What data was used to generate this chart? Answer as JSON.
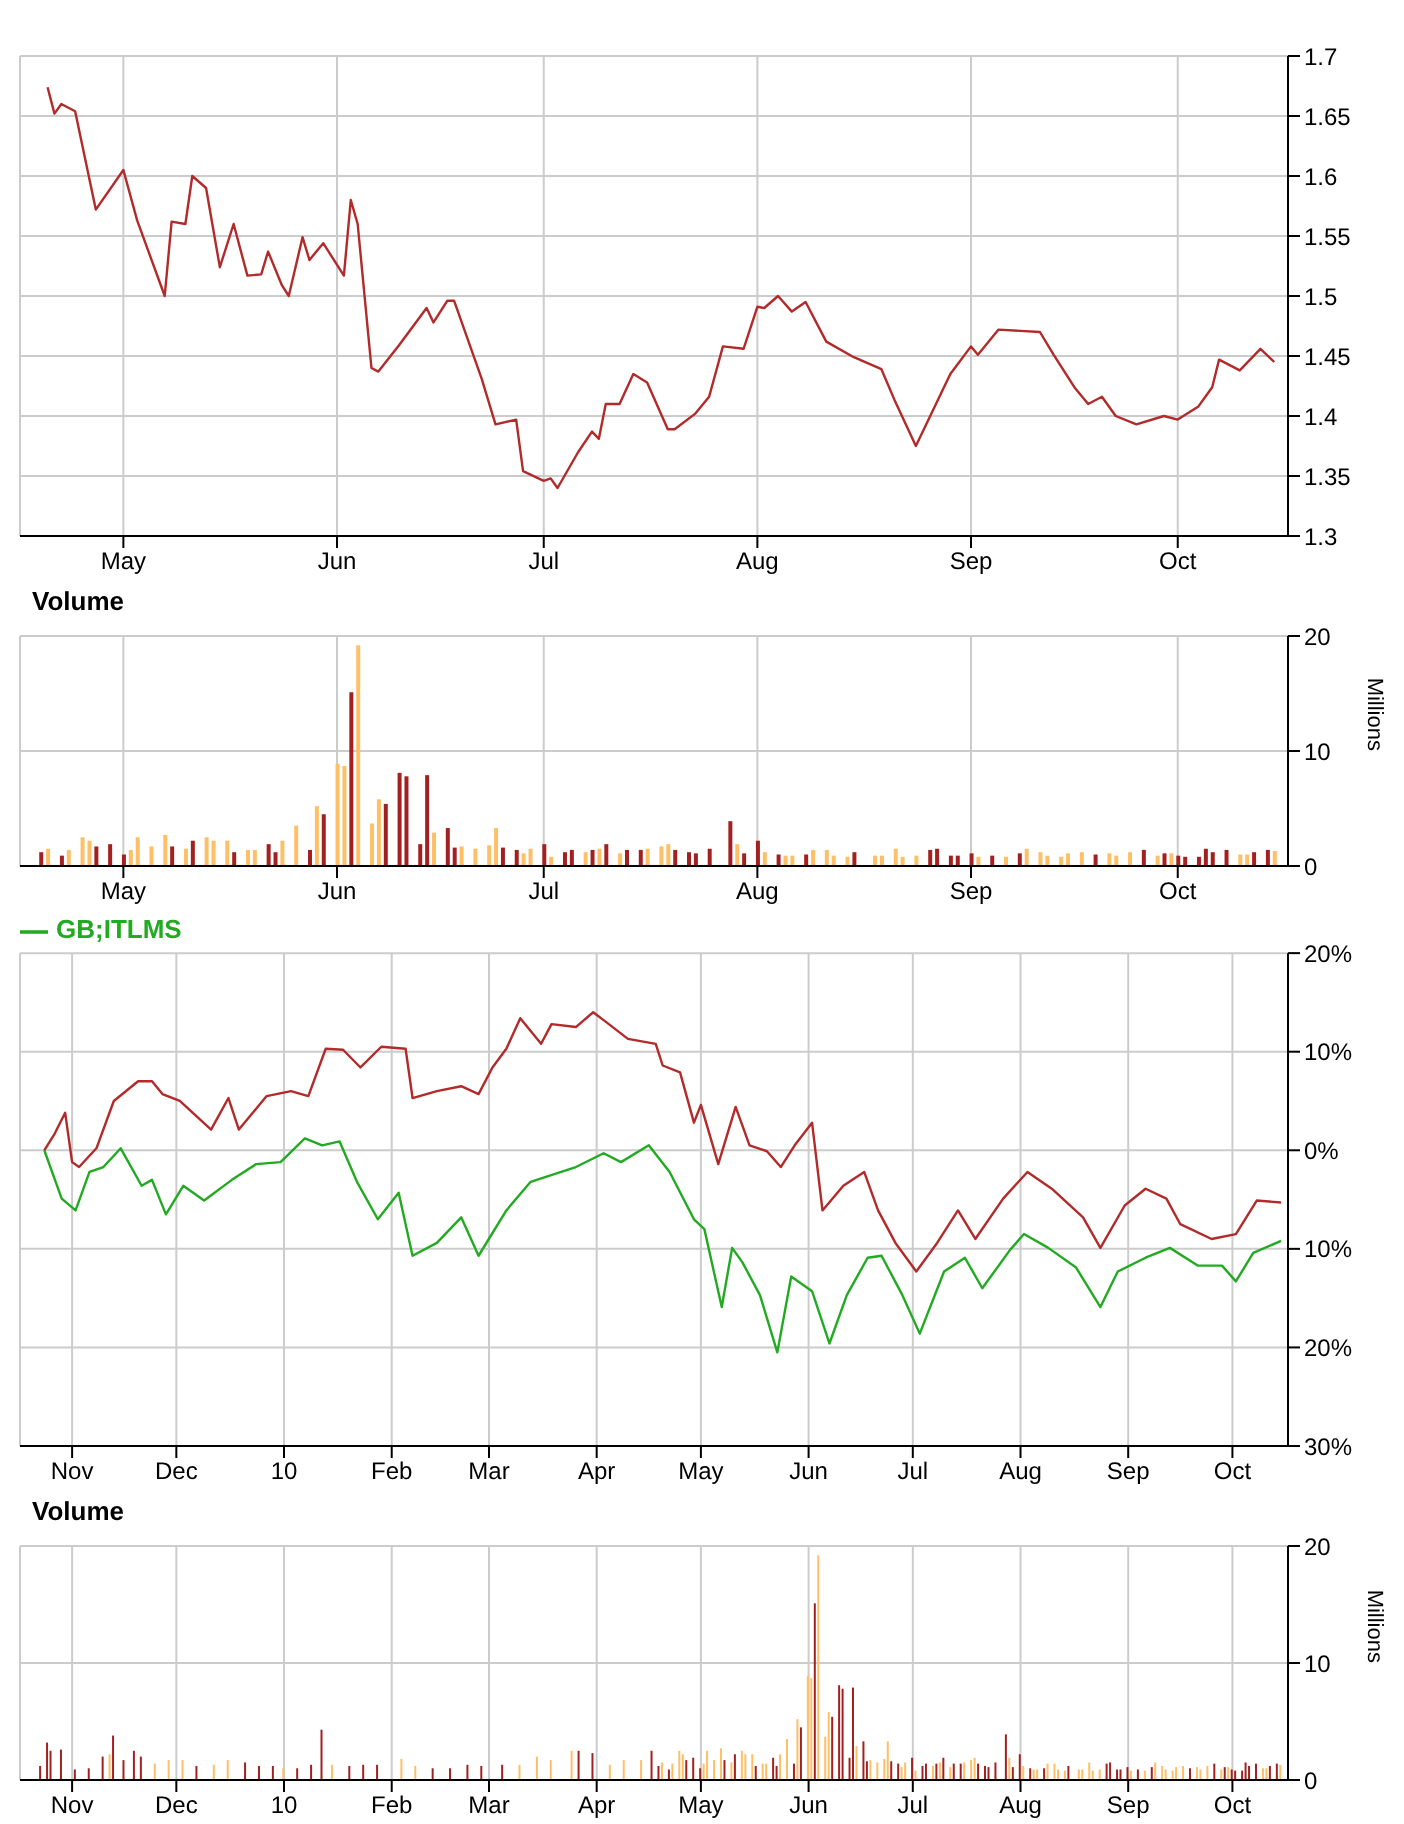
{
  "chart_data": [
    {
      "type": "line",
      "color": "#b22a2a",
      "grid": true,
      "x": [
        "--04-20",
        "--04-21",
        "--04-22",
        "--04-24",
        "--04-27",
        "--05-01",
        "--05-03",
        "--05-07",
        "--05-08",
        "--05-10",
        "--05-11",
        "--05-13",
        "--05-15",
        "--05-17",
        "--05-19",
        "--05-21",
        "--05-22",
        "--05-24",
        "--05-25",
        "--05-27",
        "--05-28",
        "--05-30",
        "--06-02",
        "--06-03",
        "--06-04",
        "--06-06",
        "--06-07",
        "--06-10",
        "--06-14",
        "--06-15",
        "--06-17",
        "--06-18",
        "--06-22",
        "--06-24",
        "--06-27",
        "--06-28",
        "--07-01",
        "--07-02",
        "--07-03",
        "--07-06",
        "--07-08",
        "--07-09",
        "--07-10",
        "--07-12",
        "--07-14",
        "--07-16",
        "--07-19",
        "--07-20",
        "--07-23",
        "--07-25",
        "--07-27",
        "--07-30",
        "--08-01",
        "--08-02",
        "--08-04",
        "--08-06",
        "--08-08",
        "--08-11",
        "--08-15",
        "--08-19",
        "--08-21",
        "--08-24",
        "--08-29",
        "--09-01",
        "--09-02",
        "--09-05",
        "--09-11",
        "--09-13",
        "--09-16",
        "--09-18",
        "--09-20",
        "--09-22",
        "--09-25",
        "--09-29",
        "--10-01",
        "--10-04",
        "--10-06",
        "--10-07",
        "--10-10",
        "--10-13",
        "--10-15"
      ],
      "values": [
        1.674,
        1.652,
        1.66,
        1.654,
        1.572,
        1.605,
        1.563,
        1.5,
        1.562,
        1.56,
        1.6,
        1.59,
        1.524,
        1.56,
        1.517,
        1.518,
        1.537,
        1.509,
        1.5,
        1.549,
        1.53,
        1.544,
        1.517,
        1.58,
        1.56,
        1.44,
        1.437,
        1.459,
        1.49,
        1.478,
        1.496,
        1.496,
        1.431,
        1.393,
        1.397,
        1.354,
        1.346,
        1.348,
        1.34,
        1.37,
        1.387,
        1.381,
        1.41,
        1.41,
        1.435,
        1.428,
        1.389,
        1.389,
        1.402,
        1.416,
        1.458,
        1.456,
        1.491,
        1.49,
        1.5,
        1.487,
        1.495,
        1.462,
        1.449,
        1.439,
        1.412,
        1.375,
        1.435,
        1.458,
        1.451,
        1.472,
        1.47,
        1.451,
        1.424,
        1.41,
        1.416,
        1.4,
        1.393,
        1.4,
        1.397,
        1.408,
        1.424,
        1.447,
        1.438,
        1.456,
        1.445
      ],
      "xlim": [
        "--04-16",
        "--10-17"
      ],
      "xticks": [
        {
          "value": "--05-01",
          "label": "May"
        },
        {
          "value": "--06-01",
          "label": "Jun"
        },
        {
          "value": "--07-01",
          "label": "Jul"
        },
        {
          "value": "--08-01",
          "label": "Aug"
        },
        {
          "value": "--09-01",
          "label": "Sep"
        },
        {
          "value": "--10-01",
          "label": "Oct"
        }
      ],
      "ylim": [
        1.3,
        1.7
      ],
      "yticks": [
        1.3,
        1.35,
        1.4,
        1.45,
        1.5,
        1.55,
        1.6,
        1.65,
        1.7
      ]
    },
    {
      "type": "bar",
      "title": "Volume",
      "ylabel": "Millions",
      "grid": true,
      "x": [
        "--04-19",
        "--04-20",
        "--04-22",
        "--04-23",
        "--04-25",
        "--04-26",
        "--04-27",
        "--04-29",
        "--05-01",
        "--05-02",
        "--05-03",
        "--05-05",
        "--05-07",
        "--05-08",
        "--05-10",
        "--05-11",
        "--05-13",
        "--05-14",
        "--05-16",
        "--05-17",
        "--05-19",
        "--05-20",
        "--05-22",
        "--05-23",
        "--05-24",
        "--05-26",
        "--05-28",
        "--05-29",
        "--05-30",
        "--06-01",
        "--06-02",
        "--06-03",
        "--06-04",
        "--06-06",
        "--06-07",
        "--06-08",
        "--06-10",
        "--06-11",
        "--06-13",
        "--06-14",
        "--06-15",
        "--06-17",
        "--06-18",
        "--06-19",
        "--06-21",
        "--06-23",
        "--06-24",
        "--06-25",
        "--06-27",
        "--06-28",
        "--06-29",
        "--07-01",
        "--07-02",
        "--07-04",
        "--07-05",
        "--07-07",
        "--07-08",
        "--07-09",
        "--07-10",
        "--07-12",
        "--07-13",
        "--07-15",
        "--07-16",
        "--07-18",
        "--07-19",
        "--07-20",
        "--07-22",
        "--07-23",
        "--07-25",
        "--07-28",
        "--07-29",
        "--07-30",
        "--08-01",
        "--08-02",
        "--08-04",
        "--08-05",
        "--08-06",
        "--08-08",
        "--08-09",
        "--08-11",
        "--08-12",
        "--08-14",
        "--08-15",
        "--08-18",
        "--08-19",
        "--08-21",
        "--08-22",
        "--08-24",
        "--08-26",
        "--08-27",
        "--08-29",
        "--08-30",
        "--09-01",
        "--09-02",
        "--09-04",
        "--09-06",
        "--09-08",
        "--09-09",
        "--09-11",
        "--09-12",
        "--09-14",
        "--09-15",
        "--09-17",
        "--09-19",
        "--09-21",
        "--09-22",
        "--09-24",
        "--09-26",
        "--09-28",
        "--09-29",
        "--09-30",
        "--10-01",
        "--10-02",
        "--10-04",
        "--10-05",
        "--10-06",
        "--10-08",
        "--10-10",
        "--10-11",
        "--10-12",
        "--10-14",
        "--10-15"
      ],
      "values": [
        1.2,
        1.5,
        0.9,
        1.4,
        2.5,
        2.2,
        1.7,
        1.9,
        1.0,
        1.4,
        2.5,
        1.7,
        2.7,
        1.7,
        1.5,
        2.2,
        2.5,
        2.2,
        2.2,
        1.2,
        1.4,
        1.4,
        1.9,
        1.2,
        2.2,
        3.5,
        1.4,
        5.2,
        4.5,
        8.9,
        8.7,
        15.1,
        19.2,
        3.7,
        5.8,
        5.4,
        8.1,
        7.8,
        1.9,
        7.9,
        2.9,
        3.3,
        1.6,
        1.7,
        1.5,
        1.8,
        3.3,
        1.6,
        1.4,
        1.1,
        1.5,
        1.9,
        0.8,
        1.2,
        1.4,
        1.2,
        1.4,
        1.5,
        1.9,
        1.1,
        1.4,
        1.4,
        1.5,
        1.7,
        1.9,
        1.4,
        1.2,
        1.1,
        1.5,
        3.9,
        1.9,
        1.1,
        2.2,
        1.2,
        1.0,
        0.9,
        0.9,
        1.0,
        1.4,
        1.4,
        0.9,
        0.8,
        1.2,
        0.9,
        0.9,
        1.5,
        0.8,
        0.9,
        1.4,
        1.5,
        0.9,
        0.9,
        1.1,
        0.8,
        0.9,
        0.8,
        1.1,
        1.5,
        1.2,
        0.9,
        0.8,
        1.1,
        1.2,
        1.0,
        1.1,
        0.9,
        1.2,
        1.4,
        0.9,
        1.1,
        1.1,
        0.9,
        0.8,
        0.8,
        1.5,
        1.2,
        1.4,
        1.0,
        1.0,
        1.2,
        1.4,
        1.3
      ],
      "colors": [
        "#a32020",
        "#ffbf66",
        "#a32020",
        "#ffbf66",
        "#ffbf66",
        "#ffbf66",
        "#a32020",
        "#a32020",
        "#a32020",
        "#ffbf66",
        "#ffbf66",
        "#ffbf66",
        "#ffbf66",
        "#a32020",
        "#ffbf66",
        "#a32020",
        "#ffbf66",
        "#ffbf66",
        "#ffbf66",
        "#a32020",
        "#ffbf66",
        "#ffbf66",
        "#a32020",
        "#a32020",
        "#ffbf66",
        "#ffbf66",
        "#a32020",
        "#ffbf66",
        "#a32020",
        "#ffbf66",
        "#ffbf66",
        "#a32020",
        "#ffbf66",
        "#ffbf66",
        "#ffbf66",
        "#a32020",
        "#a32020",
        "#a32020",
        "#a32020",
        "#a32020",
        "#ffbf66",
        "#a32020",
        "#a32020",
        "#ffbf66",
        "#ffbf66",
        "#ffbf66",
        "#ffbf66",
        "#a32020",
        "#a32020",
        "#ffbf66",
        "#ffbf66",
        "#a32020",
        "#ffbf66",
        "#a32020",
        "#a32020",
        "#ffbf66",
        "#a32020",
        "#ffbf66",
        "#a32020",
        "#ffbf66",
        "#a32020",
        "#a32020",
        "#ffbf66",
        "#ffbf66",
        "#ffbf66",
        "#a32020",
        "#a32020",
        "#a32020",
        "#a32020",
        "#a32020",
        "#ffbf66",
        "#a32020",
        "#a32020",
        "#ffbf66",
        "#a32020",
        "#ffbf66",
        "#ffbf66",
        "#a32020",
        "#ffbf66",
        "#ffbf66",
        "#ffbf66",
        "#ffbf66",
        "#a32020",
        "#ffbf66",
        "#ffbf66",
        "#ffbf66",
        "#ffbf66",
        "#ffbf66",
        "#a32020",
        "#a32020",
        "#a32020",
        "#a32020",
        "#a32020",
        "#ffbf66",
        "#a32020",
        "#ffbf66",
        "#a32020",
        "#ffbf66",
        "#ffbf66",
        "#ffbf66",
        "#ffbf66",
        "#ffbf66",
        "#ffbf66",
        "#a32020",
        "#ffbf66",
        "#ffbf66",
        "#ffbf66",
        "#a32020",
        "#ffbf66",
        "#a32020",
        "#ffbf66",
        "#a32020",
        "#a32020",
        "#a32020",
        "#a32020",
        "#a32020",
        "#a32020",
        "#ffbf66",
        "#ffbf66",
        "#a32020",
        "#a32020",
        "#ffbf66"
      ],
      "xlim": [
        "--04-16",
        "--10-17"
      ],
      "xticks": [
        {
          "value": "--05-01",
          "label": "May"
        },
        {
          "value": "--06-01",
          "label": "Jun"
        },
        {
          "value": "--07-01",
          "label": "Jul"
        },
        {
          "value": "--08-01",
          "label": "Aug"
        },
        {
          "value": "--09-01",
          "label": "Sep"
        },
        {
          "value": "--10-01",
          "label": "Oct"
        }
      ],
      "ylim": [
        0,
        20
      ],
      "yticks": [
        0,
        10,
        20
      ]
    },
    {
      "type": "line",
      "grid": true,
      "legend": "top left",
      "series": [
        {
          "color": "#b22a2a",
          "x": [
            "2009-10-24",
            "2009-10-27",
            "2009-10-30",
            "2009-11-01",
            "2009-11-03",
            "2009-11-08",
            "2009-11-13",
            "2009-11-20",
            "2009-11-24",
            "2009-11-27",
            "2009-12-02",
            "2009-12-11",
            "2009-12-16",
            "2009-12-19",
            "2009-12-27",
            "2010-01-03",
            "2010-01-08",
            "2010-01-13",
            "2010-01-18",
            "2010-01-23",
            "2010-01-29",
            "2010-02-05",
            "2010-02-07",
            "2010-02-14",
            "2010-02-21",
            "2010-02-26",
            "2010-03-02",
            "2010-03-06",
            "2010-03-10",
            "2010-03-16",
            "2010-03-19",
            "2010-03-26",
            "2010-03-31",
            "2010-04-03",
            "2010-04-10",
            "2010-04-18",
            "2010-04-20",
            "2010-04-25",
            "2010-04-29",
            "2010-05-01",
            "2010-05-06",
            "2010-05-11",
            "2010-05-15",
            "2010-05-20",
            "2010-05-24",
            "2010-05-28",
            "2010-06-02",
            "2010-06-05",
            "2010-06-11",
            "2010-06-17",
            "2010-06-21",
            "2010-06-26",
            "2010-07-02",
            "2010-07-08",
            "2010-07-14",
            "2010-07-19",
            "2010-07-27",
            "2010-08-03",
            "2010-08-10",
            "2010-08-19",
            "2010-08-24",
            "2010-08-31",
            "2010-09-06",
            "2010-09-12",
            "2010-09-16",
            "2010-09-25",
            "2010-10-02",
            "2010-10-08",
            "2010-10-15"
          ],
          "values": [
            0,
            1.7,
            3.8,
            -1.2,
            -1.7,
            0.2,
            5.0,
            7.0,
            7.0,
            5.7,
            5.0,
            2.1,
            5.3,
            2.1,
            5.5,
            6.0,
            5.5,
            10.3,
            10.2,
            8.4,
            10.5,
            10.3,
            5.3,
            6.0,
            6.5,
            5.7,
            8.4,
            10.3,
            13.4,
            10.8,
            12.8,
            12.5,
            14.0,
            13.2,
            11.3,
            10.8,
            8.6,
            7.9,
            2.8,
            4.6,
            -1.4,
            4.4,
            0.5,
            -0.1,
            -1.7,
            0.5,
            2.8,
            -6.1,
            -3.6,
            -2.2,
            -6.1,
            -9.4,
            -12.3,
            -9.4,
            -6.1,
            -9.0,
            -4.9,
            -2.2,
            -3.9,
            -6.8,
            -9.9,
            -5.6,
            -3.9,
            -4.9,
            -7.5,
            -9.0,
            -8.5,
            -5.1,
            -5.3
          ]
        },
        {
          "name": "GB;ITLMS",
          "color": "#22aa22",
          "x": [
            "2009-10-24",
            "2009-10-29",
            "2009-11-02",
            "2009-11-06",
            "2009-11-10",
            "2009-11-15",
            "2009-11-21",
            "2009-11-24",
            "2009-11-28",
            "2009-12-03",
            "2009-12-09",
            "2009-12-17",
            "2009-12-24",
            "2009-12-31",
            "2010-01-07",
            "2010-01-12",
            "2010-01-17",
            "2010-01-22",
            "2010-01-28",
            "2010-02-03",
            "2010-02-07",
            "2010-02-14",
            "2010-02-21",
            "2010-02-26",
            "2010-03-06",
            "2010-03-13",
            "2010-03-20",
            "2010-03-26",
            "2010-04-03",
            "2010-04-08",
            "2010-04-16",
            "2010-04-22",
            "2010-04-29",
            "2010-05-02",
            "2010-05-07",
            "2010-05-10",
            "2010-05-13",
            "2010-05-18",
            "2010-05-23",
            "2010-05-27",
            "2010-06-02",
            "2010-06-07",
            "2010-06-12",
            "2010-06-18",
            "2010-06-22",
            "2010-06-28",
            "2010-07-03",
            "2010-07-10",
            "2010-07-16",
            "2010-07-21",
            "2010-07-29",
            "2010-08-02",
            "2010-08-09",
            "2010-08-17",
            "2010-08-24",
            "2010-08-29",
            "2010-09-06",
            "2010-09-13",
            "2010-09-21",
            "2010-09-28",
            "2010-10-02",
            "2010-10-07",
            "2010-10-15"
          ],
          "values": [
            0,
            -4.9,
            -6.1,
            -2.2,
            -1.7,
            0.2,
            -3.6,
            -3.0,
            -6.5,
            -3.6,
            -5.1,
            -3.0,
            -1.4,
            -1.2,
            1.2,
            0.5,
            0.9,
            -3.2,
            -7.0,
            -4.3,
            -10.7,
            -9.4,
            -6.8,
            -10.7,
            -6.1,
            -3.2,
            -2.4,
            -1.7,
            -0.3,
            -1.2,
            0.5,
            -2.2,
            -7.0,
            -8.0,
            -15.9,
            -9.9,
            -11.4,
            -14.7,
            -20.5,
            -12.8,
            -14.3,
            -19.6,
            -14.7,
            -10.9,
            -10.7,
            -14.7,
            -18.6,
            -12.3,
            -10.9,
            -14.0,
            -10.1,
            -8.5,
            -9.9,
            -11.9,
            -15.9,
            -12.3,
            -10.9,
            -9.9,
            -11.7,
            -11.7,
            -13.3,
            -10.4,
            -9.2
          ]
        }
      ],
      "xlim": [
        "2009-10-17",
        "2010-10-17"
      ],
      "xticks": [
        {
          "value": "2009-11-01",
          "label": "Nov"
        },
        {
          "value": "2009-12-01",
          "label": "Dec"
        },
        {
          "value": "2010-01-01",
          "label": "10"
        },
        {
          "value": "2010-02-01",
          "label": "Feb"
        },
        {
          "value": "2010-03-01",
          "label": "Mar"
        },
        {
          "value": "2010-04-01",
          "label": "Apr"
        },
        {
          "value": "2010-05-01",
          "label": "May"
        },
        {
          "value": "2010-06-01",
          "label": "Jun"
        },
        {
          "value": "2010-07-01",
          "label": "Jul"
        },
        {
          "value": "2010-08-01",
          "label": "Aug"
        },
        {
          "value": "2010-09-01",
          "label": "Sep"
        },
        {
          "value": "2010-10-01",
          "label": "Oct"
        }
      ],
      "ylim": [
        -30,
        20
      ],
      "yticks": [
        {
          "value": -30,
          "label": "30%"
        },
        {
          "value": -20,
          "label": "20%"
        },
        {
          "value": -10,
          "label": "10%"
        },
        {
          "value": 0,
          "label": "0%"
        },
        {
          "value": 10,
          "label": "10%"
        },
        {
          "value": 20,
          "label": "20%"
        }
      ]
    },
    {
      "type": "bar",
      "title": "Volume",
      "ylabel": "Millions",
      "grid": true,
      "x": [
        "2009-10-23",
        "2009-10-25",
        "2009-10-26",
        "2009-10-29",
        "2009-11-02",
        "2009-11-06",
        "2009-11-10",
        "2009-11-12",
        "2009-11-13",
        "2009-11-16",
        "2009-11-19",
        "2009-11-21",
        "2009-11-25",
        "2009-11-29",
        "2009-12-03",
        "2009-12-07",
        "2009-12-12",
        "2009-12-16",
        "2009-12-21",
        "2009-12-25",
        "2009-12-29",
        "2010-01-01",
        "2010-01-05",
        "2010-01-09",
        "2010-01-12",
        "2010-01-15",
        "2010-01-20",
        "2010-01-24",
        "2010-01-28",
        "2010-02-04",
        "2010-02-08",
        "2010-02-13",
        "2010-02-18",
        "2010-02-23",
        "2010-02-27",
        "2010-03-05",
        "2010-03-10",
        "2010-03-15",
        "2010-03-19",
        "2010-03-25",
        "2010-03-27",
        "2010-03-31",
        "2010-04-05",
        "2010-04-09",
        "2010-04-14",
        "2010-04-17",
        "2010-04-19",
        "2010-04-20",
        "2010-04-22",
        "2010-04-23",
        "2010-04-25",
        "2010-04-26",
        "2010-04-27",
        "2010-04-29",
        "2010-05-01",
        "2010-05-02",
        "2010-05-03",
        "2010-05-05",
        "2010-05-07",
        "2010-05-08",
        "2010-05-10",
        "2010-05-11",
        "2010-05-13",
        "2010-05-14",
        "2010-05-16",
        "2010-05-17",
        "2010-05-19",
        "2010-05-20",
        "2010-05-22",
        "2010-05-23",
        "2010-05-24",
        "2010-05-26",
        "2010-05-28",
        "2010-05-29",
        "2010-05-30",
        "2010-06-01",
        "2010-06-02",
        "2010-06-03",
        "2010-06-04",
        "2010-06-06",
        "2010-06-07",
        "2010-06-08",
        "2010-06-10",
        "2010-06-11",
        "2010-06-13",
        "2010-06-14",
        "2010-06-15",
        "2010-06-17",
        "2010-06-18",
        "2010-06-19",
        "2010-06-21",
        "2010-06-23",
        "2010-06-24",
        "2010-06-25",
        "2010-06-27",
        "2010-06-28",
        "2010-06-29",
        "2010-07-01",
        "2010-07-02",
        "2010-07-04",
        "2010-07-05",
        "2010-07-07",
        "2010-07-08",
        "2010-07-09",
        "2010-07-10",
        "2010-07-12",
        "2010-07-13",
        "2010-07-15",
        "2010-07-16",
        "2010-07-18",
        "2010-07-19",
        "2010-07-20",
        "2010-07-22",
        "2010-07-23",
        "2010-07-25",
        "2010-07-28",
        "2010-07-29",
        "2010-07-30",
        "2010-08-01",
        "2010-08-02",
        "2010-08-04",
        "2010-08-05",
        "2010-08-06",
        "2010-08-08",
        "2010-08-09",
        "2010-08-11",
        "2010-08-12",
        "2010-08-14",
        "2010-08-15",
        "2010-08-18",
        "2010-08-19",
        "2010-08-21",
        "2010-08-22",
        "2010-08-24",
        "2010-08-26",
        "2010-08-27",
        "2010-08-29",
        "2010-08-30",
        "2010-09-01",
        "2010-09-02",
        "2010-09-04",
        "2010-09-06",
        "2010-09-08",
        "2010-09-09",
        "2010-09-11",
        "2010-09-12",
        "2010-09-14",
        "2010-09-15",
        "2010-09-17",
        "2010-09-19",
        "2010-09-21",
        "2010-09-22",
        "2010-09-24",
        "2010-09-26",
        "2010-09-28",
        "2010-09-29",
        "2010-09-30",
        "2010-10-01",
        "2010-10-02",
        "2010-10-04",
        "2010-10-05",
        "2010-10-06",
        "2010-10-08",
        "2010-10-10",
        "2010-10-11",
        "2010-10-12",
        "2010-10-14",
        "2010-10-15"
      ],
      "values": [
        1.2,
        3.2,
        2.5,
        2.6,
        0.9,
        1.0,
        2.0,
        2.2,
        3.8,
        1.7,
        2.5,
        2.0,
        1.4,
        1.7,
        1.7,
        1.2,
        1.3,
        1.7,
        1.5,
        1.2,
        1.2,
        1.0,
        1.0,
        1.3,
        4.3,
        1.3,
        1.2,
        1.3,
        1.3,
        1.8,
        1.2,
        1.0,
        1.0,
        1.3,
        1.2,
        1.3,
        1.3,
        2.0,
        1.7,
        2.5,
        2.5,
        2.3,
        1.3,
        1.7,
        1.7,
        2.5,
        1.2,
        1.5,
        0.9,
        1.4,
        2.5,
        2.2,
        1.7,
        1.9,
        1.0,
        1.4,
        2.5,
        1.7,
        2.7,
        1.7,
        1.5,
        2.2,
        2.5,
        2.2,
        2.2,
        1.2,
        1.4,
        1.4,
        1.9,
        1.2,
        2.2,
        3.5,
        1.4,
        5.2,
        4.5,
        8.9,
        8.7,
        15.1,
        19.2,
        3.7,
        5.8,
        5.4,
        8.1,
        7.8,
        1.9,
        7.9,
        2.9,
        3.3,
        1.6,
        1.7,
        1.5,
        1.8,
        3.3,
        1.6,
        1.4,
        1.1,
        1.5,
        1.9,
        0.8,
        1.2,
        1.4,
        1.2,
        1.4,
        1.5,
        1.9,
        1.1,
        1.4,
        1.4,
        1.5,
        1.7,
        1.9,
        1.4,
        1.2,
        1.1,
        1.5,
        3.9,
        1.9,
        1.1,
        2.2,
        1.2,
        1.0,
        0.9,
        0.9,
        1.0,
        1.4,
        1.4,
        0.9,
        0.8,
        1.2,
        0.9,
        0.9,
        1.5,
        0.8,
        0.9,
        1.4,
        1.5,
        0.9,
        0.9,
        1.1,
        0.8,
        0.9,
        0.8,
        1.1,
        1.5,
        1.2,
        0.9,
        0.8,
        1.1,
        1.2,
        1.0,
        1.1,
        0.9,
        1.2,
        1.4,
        0.9,
        1.1,
        1.1,
        0.9,
        0.8,
        0.8,
        1.5,
        1.2,
        1.4,
        1.0,
        1.0,
        1.2,
        1.4,
        1.3
      ],
      "colors": [
        "#a32020",
        "#a32020",
        "#a32020",
        "#a32020",
        "#a32020",
        "#a32020",
        "#a32020",
        "#ffbf66",
        "#a32020",
        "#a32020",
        "#a32020",
        "#a32020",
        "#ffbf66",
        "#ffbf66",
        "#ffbf66",
        "#a32020",
        "#ffbf66",
        "#ffbf66",
        "#a32020",
        "#a32020",
        "#a32020",
        "#ffbf66",
        "#a32020",
        "#a32020",
        "#a32020",
        "#ffbf66",
        "#a32020",
        "#a32020",
        "#a32020",
        "#ffbf66",
        "#ffbf66",
        "#a32020",
        "#a32020",
        "#a32020",
        "#a32020",
        "#a32020",
        "#ffbf66",
        "#ffbf66",
        "#ffbf66",
        "#ffbf66",
        "#a32020",
        "#a32020",
        "#ffbf66",
        "#ffbf66",
        "#ffbf66",
        "#a32020",
        "#a32020",
        "#ffbf66",
        "#a32020",
        "#ffbf66",
        "#ffbf66",
        "#ffbf66",
        "#a32020",
        "#a32020",
        "#a32020",
        "#ffbf66",
        "#ffbf66",
        "#ffbf66",
        "#ffbf66",
        "#a32020",
        "#ffbf66",
        "#a32020",
        "#ffbf66",
        "#ffbf66",
        "#ffbf66",
        "#a32020",
        "#ffbf66",
        "#ffbf66",
        "#a32020",
        "#a32020",
        "#ffbf66",
        "#ffbf66",
        "#a32020",
        "#ffbf66",
        "#a32020",
        "#ffbf66",
        "#ffbf66",
        "#a32020",
        "#ffbf66",
        "#ffbf66",
        "#ffbf66",
        "#a32020",
        "#a32020",
        "#a32020",
        "#a32020",
        "#a32020",
        "#ffbf66",
        "#a32020",
        "#a32020",
        "#ffbf66",
        "#ffbf66",
        "#ffbf66",
        "#ffbf66",
        "#a32020",
        "#a32020",
        "#ffbf66",
        "#ffbf66",
        "#a32020",
        "#ffbf66",
        "#a32020",
        "#a32020",
        "#ffbf66",
        "#a32020",
        "#ffbf66",
        "#a32020",
        "#ffbf66",
        "#a32020",
        "#a32020",
        "#ffbf66",
        "#ffbf66",
        "#ffbf66",
        "#a32020",
        "#a32020",
        "#a32020",
        "#a32020",
        "#a32020",
        "#ffbf66",
        "#a32020",
        "#a32020",
        "#ffbf66",
        "#a32020",
        "#ffbf66",
        "#ffbf66",
        "#a32020",
        "#ffbf66",
        "#ffbf66",
        "#ffbf66",
        "#ffbf66",
        "#a32020",
        "#ffbf66",
        "#ffbf66",
        "#ffbf66",
        "#ffbf66",
        "#ffbf66",
        "#a32020",
        "#a32020",
        "#a32020",
        "#a32020",
        "#a32020",
        "#ffbf66",
        "#a32020",
        "#ffbf66",
        "#a32020",
        "#ffbf66",
        "#ffbf66",
        "#ffbf66",
        "#ffbf66",
        "#ffbf66",
        "#ffbf66",
        "#a32020",
        "#ffbf66",
        "#ffbf66",
        "#ffbf66",
        "#a32020",
        "#ffbf66",
        "#a32020",
        "#ffbf66",
        "#a32020",
        "#a32020",
        "#a32020",
        "#a32020",
        "#a32020",
        "#a32020",
        "#ffbf66",
        "#ffbf66",
        "#a32020",
        "#a32020",
        "#ffbf66"
      ],
      "xlim": [
        "2009-10-17",
        "2010-10-17"
      ],
      "xticks": [
        {
          "value": "2009-11-01",
          "label": "Nov"
        },
        {
          "value": "2009-12-01",
          "label": "Dec"
        },
        {
          "value": "2010-01-01",
          "label": "10"
        },
        {
          "value": "2010-02-01",
          "label": "Feb"
        },
        {
          "value": "2010-03-01",
          "label": "Mar"
        },
        {
          "value": "2010-04-01",
          "label": "Apr"
        },
        {
          "value": "2010-05-01",
          "label": "May"
        },
        {
          "value": "2010-06-01",
          "label": "Jun"
        },
        {
          "value": "2010-07-01",
          "label": "Jul"
        },
        {
          "value": "2010-08-01",
          "label": "Aug"
        },
        {
          "value": "2010-09-01",
          "label": "Sep"
        },
        {
          "value": "2010-10-01",
          "label": "Oct"
        }
      ],
      "ylim": [
        0,
        20
      ],
      "yticks": [
        0,
        10,
        20
      ]
    }
  ]
}
